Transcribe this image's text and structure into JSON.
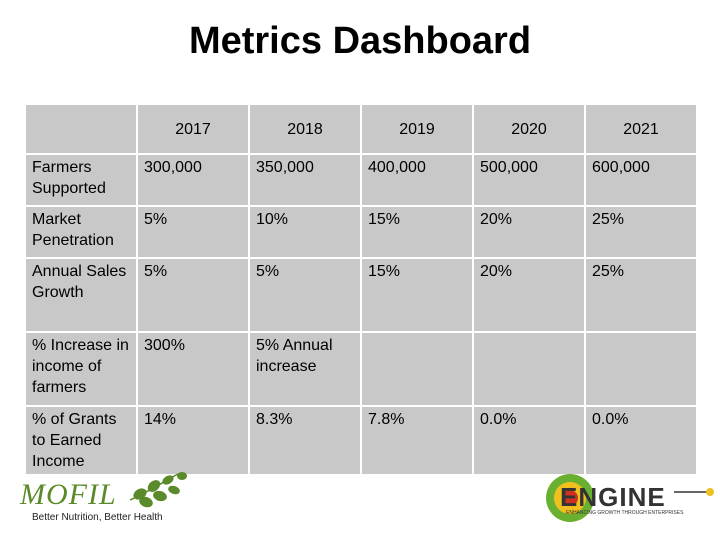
{
  "title": "Metrics Dashboard",
  "table": {
    "years": [
      "2017",
      "2018",
      "2019",
      "2020",
      "2021"
    ],
    "rows": [
      {
        "label": "Farmers Supported",
        "values": [
          "300,000",
          "350,000",
          "400,000",
          "500,000",
          "600,000"
        ]
      },
      {
        "label": "Market Penetration",
        "values": [
          "5%",
          "10%",
          "15%",
          "20%",
          "25%"
        ]
      },
      {
        "label": "Annual Sales Growth",
        "values": [
          "5%",
          "5%",
          "15%",
          "20%",
          "25%"
        ]
      },
      {
        "label": "% Increase in income of farmers",
        "values": [
          "300%",
          "5% Annual increase",
          "",
          "",
          ""
        ]
      },
      {
        "label": "% of Grants to Earned Income",
        "values": [
          "14%",
          "8.3%",
          "7.8%",
          "0.0%",
          "0.0%"
        ]
      }
    ]
  },
  "footer": {
    "mofil_logo_text": "MOFIL",
    "mofil_tagline": "Better Nutrition, Better Health",
    "engine_logo_text": "ENGINE",
    "engine_tagline": "ENHANCING GROWTH THROUGH ENTERPRISES"
  },
  "colors": {
    "cell_bg": "#c8c8c8",
    "mofil_green": "#5a8a2a",
    "engine_green": "#6ab030",
    "engine_yellow": "#f0c020",
    "engine_red": "#d03020"
  }
}
